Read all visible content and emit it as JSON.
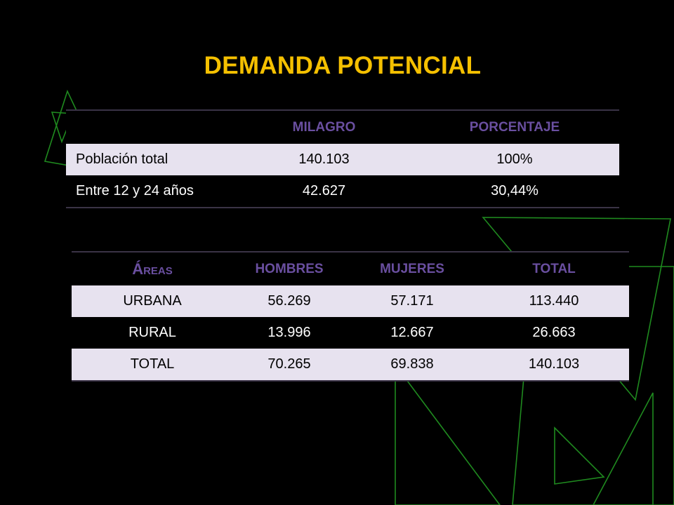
{
  "slide": {
    "title": "DEMANDA POTENCIAL"
  },
  "colors": {
    "background": "#000000",
    "title": "#f5c000",
    "header_text": "#6a4fa0",
    "row_light": "#e7e2ef",
    "row_dark": "#000000",
    "decor_line": "#1f8a1f"
  },
  "population_table": {
    "headers": [
      "",
      "MILAGRO",
      "PORCENTAJE"
    ],
    "rows": [
      [
        "Población total",
        "140.103",
        "100%"
      ],
      [
        "Entre 12 y 24 años",
        "42.627",
        "30,44%"
      ]
    ]
  },
  "areas_table": {
    "header_areas_initial": "Á",
    "header_areas_rest": "REAS",
    "headers": [
      "HOMBRES",
      "MUJERES",
      "TOTAL"
    ],
    "rows": [
      [
        "URBANA",
        "56.269",
        "57.171",
        "113.440"
      ],
      [
        "RURAL",
        "13.996",
        "12.667",
        "26.663"
      ],
      [
        "TOTAL",
        "70.265",
        "69.838",
        "140.103"
      ]
    ]
  }
}
